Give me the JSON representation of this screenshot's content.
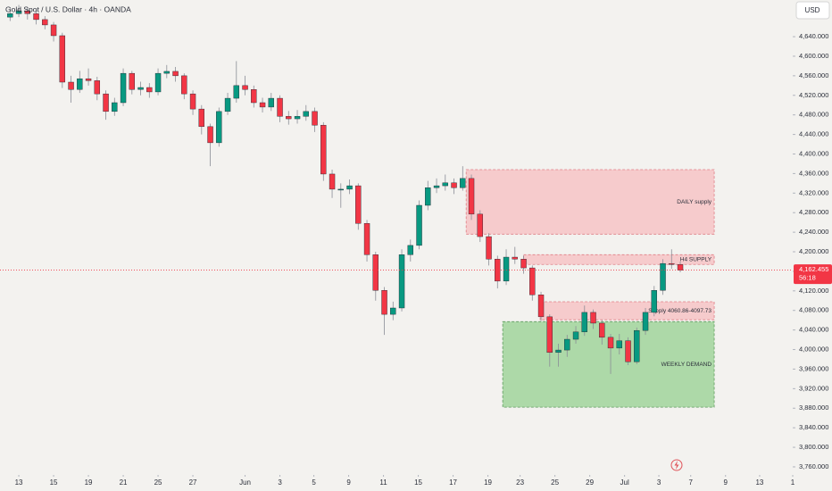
{
  "chart_data": {
    "type": "candlestick",
    "title": "Gold Spot / U.S. Dollar · 4h · OANDA",
    "currency": "USD",
    "countdown": "56:18",
    "up_color": "#089981",
    "down_color": "#f23645",
    "xlim": [
      -1.08,
      44.46
    ],
    "ylim": [
      3743.5,
      4715
    ],
    "xticks": [
      {
        "value": 0,
        "label": "13"
      },
      {
        "value": 2,
        "label": "15"
      },
      {
        "value": 4,
        "label": "19"
      },
      {
        "value": 6,
        "label": "21"
      },
      {
        "value": 8,
        "label": "25"
      },
      {
        "value": 10,
        "label": "27"
      },
      {
        "value": 13,
        "label": "Jun"
      },
      {
        "value": 15,
        "label": "3"
      },
      {
        "value": 16.95,
        "label": "5"
      },
      {
        "value": 18.95,
        "label": "9"
      },
      {
        "value": 20.95,
        "label": "11"
      },
      {
        "value": 22.95,
        "label": "15"
      },
      {
        "value": 24.95,
        "label": "17"
      },
      {
        "value": 26.95,
        "label": "19"
      },
      {
        "value": 28.8,
        "label": "23"
      },
      {
        "value": 30.8,
        "label": "25"
      },
      {
        "value": 32.8,
        "label": "29"
      },
      {
        "value": 34.8,
        "label": "Jul"
      },
      {
        "value": 36.77,
        "label": "3"
      },
      {
        "value": 38.6,
        "label": "7"
      },
      {
        "value": 40.6,
        "label": "9"
      },
      {
        "value": 42.56,
        "label": "13"
      },
      {
        "value": 44.46,
        "label": "1"
      }
    ],
    "yticks": [
      {
        "value": 3760,
        "label": "3,760.000"
      },
      {
        "value": 3800,
        "label": "3,800.000"
      },
      {
        "value": 3840,
        "label": "3,840.000"
      },
      {
        "value": 3880,
        "label": "3,880.000"
      },
      {
        "value": 3920,
        "label": "3,920.000"
      },
      {
        "value": 3960,
        "label": "3,960.000"
      },
      {
        "value": 4000,
        "label": "4,000.000"
      },
      {
        "value": 4040,
        "label": "4,040.000"
      },
      {
        "value": 4080,
        "label": "4,080.000"
      },
      {
        "value": 4120,
        "label": "4,120.000"
      },
      {
        "value": 4160,
        "label": "4,160.000"
      },
      {
        "value": 4200,
        "label": "4,200.000"
      },
      {
        "value": 4240,
        "label": "4,240.000"
      },
      {
        "value": 4280,
        "label": "4,280.000"
      },
      {
        "value": 4320,
        "label": "4,320.000"
      },
      {
        "value": 4360,
        "label": "4,360.000"
      },
      {
        "value": 4400,
        "label": "4,400.000"
      },
      {
        "value": 4440,
        "label": "4,440.000"
      },
      {
        "value": 4480,
        "label": "4,480.000"
      },
      {
        "value": 4520,
        "label": "4,520.000"
      },
      {
        "value": 4560,
        "label": "4,560.000"
      },
      {
        "value": 4600,
        "label": "4,600.000"
      },
      {
        "value": 4640,
        "label": "4,640.000"
      }
    ],
    "last_price": {
      "value": 4162.455,
      "label": "4,162.455"
    },
    "zones": [
      {
        "label": "DAILY supply",
        "x0": 25.7,
        "x1": 39.95,
        "top": 4368,
        "bottom": 4236,
        "color": "#f6c6c8",
        "border": "#e07f86"
      },
      {
        "label": "WEEKLY DEMAND",
        "x0": 27.8,
        "x1": 39.95,
        "top": 4057,
        "bottom": 3882,
        "color": "#a5d6a0",
        "border": "#5f9a5f"
      },
      {
        "label": "H4 SUPPLY",
        "x0": 29,
        "x1": 39.95,
        "top": 4194,
        "bottom": 4174,
        "color": "#f6c6c8",
        "border": "#e07f86"
      },
      {
        "label": "Supply 4060.86-4097.73",
        "x0": 29.95,
        "x1": 39.95,
        "top": 4097.73,
        "bottom": 4060.86,
        "color": "#f6c6c8",
        "border": "#e07f86"
      }
    ],
    "x": [
      -0.5,
      0,
      0.5,
      1,
      1.5,
      2,
      2.5,
      3,
      3.5,
      4,
      4.5,
      5,
      5.5,
      6,
      6.5,
      7,
      7.5,
      8,
      8.5,
      9,
      9.5,
      10,
      10.5,
      11,
      11.5,
      12,
      12.5,
      13,
      13.5,
      14,
      14.5,
      15,
      15.5,
      16,
      16.5,
      17,
      17.5,
      18,
      18.5,
      19,
      19.5,
      20,
      20.5,
      21,
      21.5,
      22,
      22.5,
      23,
      23.5,
      24,
      24.5,
      25,
      25.5,
      26,
      26.5,
      27,
      27.5,
      28,
      28.5,
      29,
      29.5,
      30,
      30.5,
      31,
      31.5,
      32,
      32.5,
      33,
      33.5,
      34,
      34.5,
      35,
      35.5,
      36,
      36.5,
      37,
      37.5,
      38
    ],
    "candles": [
      [
        4680,
        4700,
        4672,
        4687
      ],
      [
        4687,
        4705,
        4680,
        4693
      ],
      [
        4693,
        4700,
        4675,
        4687
      ],
      [
        4687,
        4695,
        4665,
        4675
      ],
      [
        4675,
        4682,
        4655,
        4664
      ],
      [
        4664,
        4670,
        4630,
        4642
      ],
      [
        4642,
        4648,
        4535,
        4547
      ],
      [
        4547,
        4560,
        4505,
        4532
      ],
      [
        4532,
        4570,
        4525,
        4554
      ],
      [
        4554,
        4575,
        4540,
        4550
      ],
      [
        4550,
        4558,
        4510,
        4523
      ],
      [
        4523,
        4530,
        4470,
        4487
      ],
      [
        4487,
        4515,
        4478,
        4505
      ],
      [
        4505,
        4575,
        4498,
        4565
      ],
      [
        4565,
        4570,
        4522,
        4532
      ],
      [
        4532,
        4548,
        4520,
        4536
      ],
      [
        4536,
        4545,
        4515,
        4527
      ],
      [
        4527,
        4575,
        4520,
        4565
      ],
      [
        4565,
        4582,
        4555,
        4569
      ],
      [
        4569,
        4578,
        4548,
        4560
      ],
      [
        4560,
        4565,
        4512,
        4523
      ],
      [
        4523,
        4530,
        4480,
        4492
      ],
      [
        4492,
        4500,
        4440,
        4456
      ],
      [
        4456,
        4462,
        4375,
        4423
      ],
      [
        4423,
        4495,
        4415,
        4487
      ],
      [
        4487,
        4525,
        4480,
        4514
      ],
      [
        4514,
        4590,
        4505,
        4540
      ],
      [
        4540,
        4560,
        4520,
        4532
      ],
      [
        4532,
        4540,
        4495,
        4505
      ],
      [
        4505,
        4515,
        4485,
        4496
      ],
      [
        4496,
        4525,
        4488,
        4514
      ],
      [
        4514,
        4520,
        4465,
        4477
      ],
      [
        4477,
        4488,
        4460,
        4472
      ],
      [
        4472,
        4490,
        4462,
        4477
      ],
      [
        4477,
        4500,
        4468,
        4487
      ],
      [
        4487,
        4495,
        4445,
        4459
      ],
      [
        4459,
        4465,
        4345,
        4359
      ],
      [
        4359,
        4368,
        4310,
        4328
      ],
      [
        4328,
        4340,
        4290,
        4328
      ],
      [
        4328,
        4348,
        4318,
        4335
      ],
      [
        4335,
        4340,
        4245,
        4258
      ],
      [
        4258,
        4265,
        4180,
        4194
      ],
      [
        4194,
        4200,
        4100,
        4121
      ],
      [
        4121,
        4128,
        4030,
        4072
      ],
      [
        4072,
        4098,
        4060,
        4085
      ],
      [
        4085,
        4205,
        4078,
        4194
      ],
      [
        4194,
        4225,
        4180,
        4213
      ],
      [
        4213,
        4305,
        4205,
        4295
      ],
      [
        4295,
        4345,
        4285,
        4331
      ],
      [
        4331,
        4350,
        4320,
        4335
      ],
      [
        4335,
        4358,
        4325,
        4341
      ],
      [
        4341,
        4350,
        4318,
        4331
      ],
      [
        4331,
        4375,
        4325,
        4350
      ],
      [
        4350,
        4358,
        4265,
        4277
      ],
      [
        4277,
        4285,
        4220,
        4231
      ],
      [
        4231,
        4238,
        4172,
        4185
      ],
      [
        4185,
        4192,
        4125,
        4140
      ],
      [
        4140,
        4205,
        4132,
        4189
      ],
      [
        4189,
        4210,
        4175,
        4185
      ],
      [
        4185,
        4192,
        4155,
        4167
      ],
      [
        4167,
        4172,
        4100,
        4112
      ],
      [
        4112,
        4118,
        4058,
        4067
      ],
      [
        4067,
        4072,
        3965,
        3994
      ],
      [
        3994,
        4012,
        3965,
        3999
      ],
      [
        3999,
        4030,
        3985,
        4021
      ],
      [
        4021,
        4048,
        4012,
        4036
      ],
      [
        4036,
        4090,
        4028,
        4076
      ],
      [
        4076,
        4082,
        4042,
        4054
      ],
      [
        4054,
        4060,
        4010,
        4025
      ],
      [
        4025,
        4032,
        3950,
        4003
      ],
      [
        4003,
        4032,
        3990,
        4018
      ],
      [
        4018,
        4025,
        3968,
        3975
      ],
      [
        3975,
        4045,
        3970,
        4039
      ],
      [
        4039,
        4085,
        4030,
        4076
      ],
      [
        4076,
        4130,
        4068,
        4121
      ],
      [
        4121,
        4185,
        4112,
        4176
      ],
      [
        4176,
        4205,
        4165,
        4174
      ],
      [
        4174,
        4180,
        4158,
        4162.455
      ]
    ]
  }
}
